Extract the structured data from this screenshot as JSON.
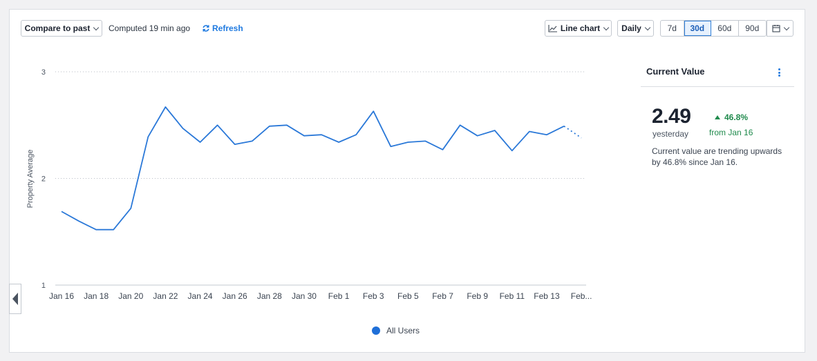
{
  "toolbar": {
    "compare_label": "Compare to past",
    "computed_text": "Computed 19 min ago",
    "refresh_label": "Refresh",
    "chart_type_label": "Line chart",
    "interval_label": "Daily",
    "ranges": [
      {
        "label": "7d",
        "active": false
      },
      {
        "label": "30d",
        "active": true
      },
      {
        "label": "60d",
        "active": false
      },
      {
        "label": "90d",
        "active": false
      }
    ],
    "icons": {
      "chart_type": "line-chart-icon",
      "refresh": "refresh-icon",
      "calendar": "calendar-icon",
      "collapse": "collapse-left-icon"
    }
  },
  "side_panel": {
    "title": "Current Value",
    "value": "2.49",
    "value_caption": "yesterday",
    "delta": "46.8%",
    "delta_from": "from Jan 16",
    "description": "Current value are trending upwards by 46.8% since Jan 16.",
    "colors": {
      "positive": "#1f8a4c"
    }
  },
  "chart_data": {
    "type": "line",
    "title": "",
    "xlabel": "",
    "ylabel": "Property Average",
    "ylim": [
      1,
      3
    ],
    "y_ticks": [
      "1",
      "2",
      "3"
    ],
    "x": [
      "Jan 16",
      "Jan 17",
      "Jan 18",
      "Jan 19",
      "Jan 20",
      "Jan 21",
      "Jan 22",
      "Jan 23",
      "Jan 24",
      "Jan 25",
      "Jan 26",
      "Jan 27",
      "Jan 28",
      "Jan 29",
      "Jan 30",
      "Jan 31",
      "Feb 1",
      "Feb 2",
      "Feb 3",
      "Feb 4",
      "Feb 5",
      "Feb 6",
      "Feb 7",
      "Feb 8",
      "Feb 9",
      "Feb 10",
      "Feb 11",
      "Feb 12",
      "Feb 13",
      "Feb 14",
      "Feb 15"
    ],
    "x_tick_labels": [
      "Jan 16",
      "Jan 18",
      "Jan 20",
      "Jan 22",
      "Jan 24",
      "Jan 26",
      "Jan 28",
      "Jan 30",
      "Feb 1",
      "Feb 3",
      "Feb 5",
      "Feb 7",
      "Feb 9",
      "Feb 11",
      "Feb 13",
      "Feb..."
    ],
    "series": [
      {
        "name": "All Users",
        "color": "#2a78d8",
        "values": [
          1.69,
          1.6,
          1.52,
          1.52,
          1.72,
          2.39,
          2.67,
          2.47,
          2.34,
          2.5,
          2.32,
          2.35,
          2.49,
          2.5,
          2.4,
          2.41,
          2.34,
          2.41,
          2.63,
          2.3,
          2.34,
          2.35,
          2.27,
          2.5,
          2.4,
          2.45,
          2.26,
          2.44,
          2.41,
          2.49,
          2.38
        ],
        "dotted_from_index": 29
      }
    ],
    "grid": true,
    "legend_position": "bottom"
  }
}
